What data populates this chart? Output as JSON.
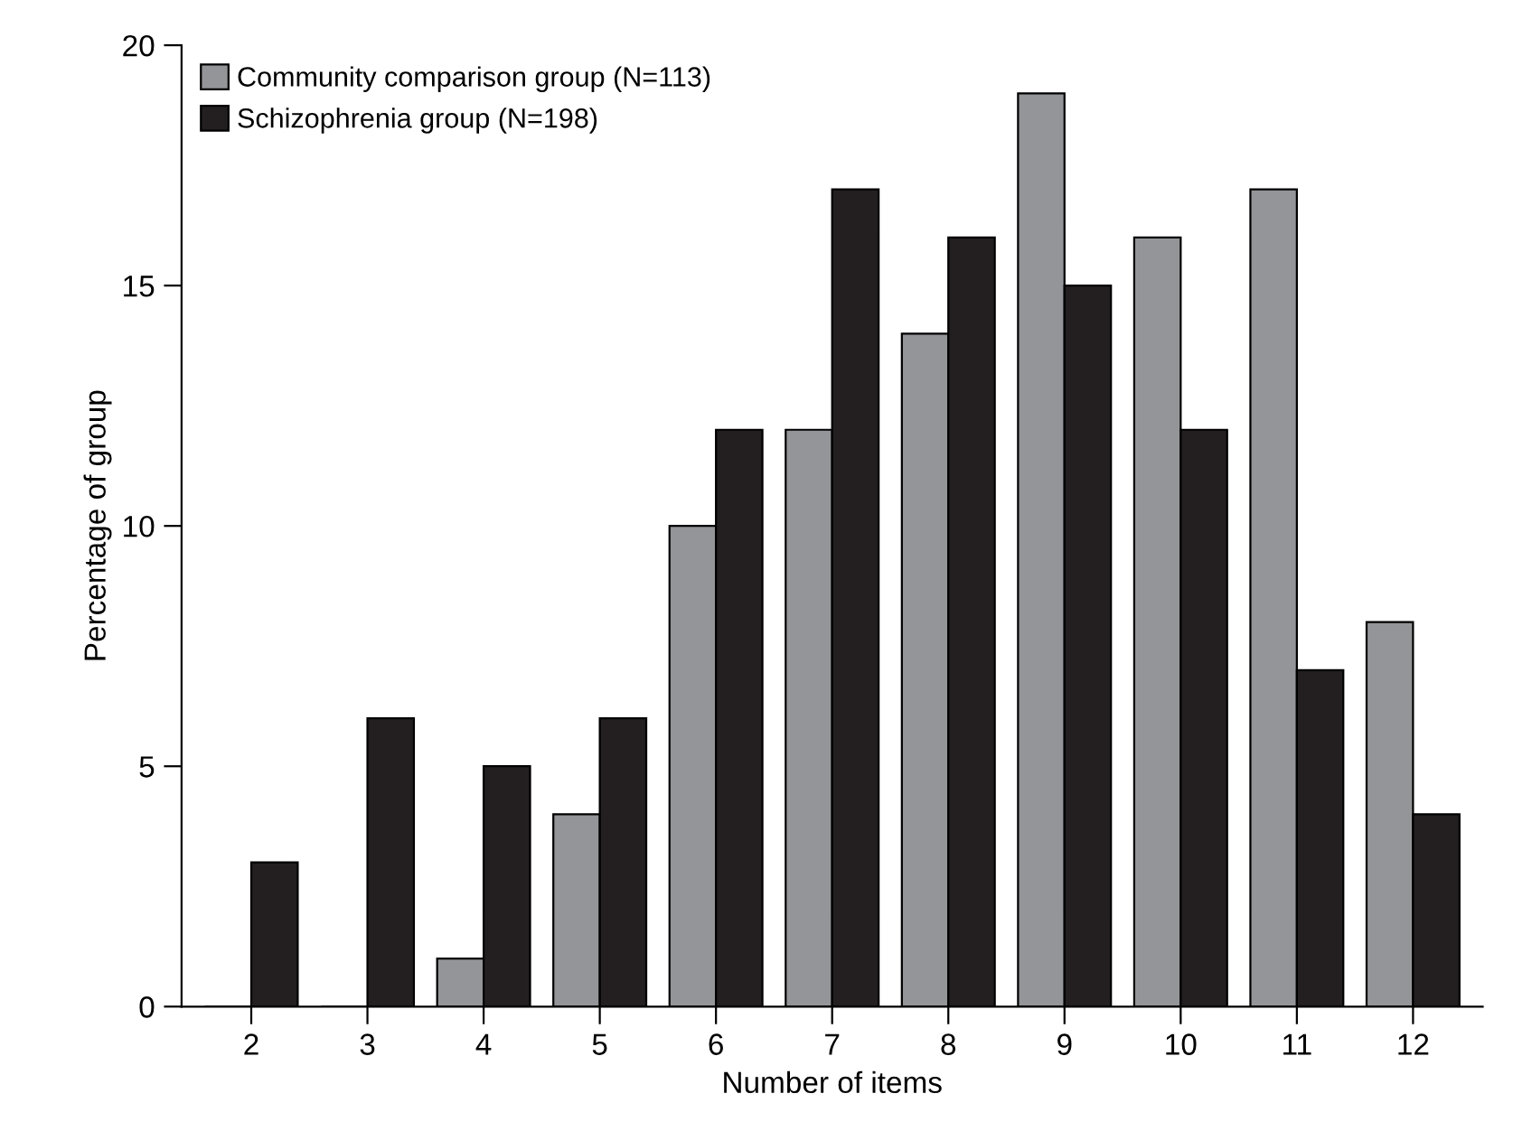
{
  "chart_data": {
    "type": "bar",
    "xlabel": "Number of items",
    "ylabel": "Percentage of group",
    "categories": [
      "2",
      "3",
      "4",
      "5",
      "6",
      "7",
      "8",
      "9",
      "10",
      "11",
      "12"
    ],
    "series": [
      {
        "name": "Community comparison group (N=113)",
        "color": "#939598",
        "values": [
          0,
          0,
          1,
          4,
          10,
          12,
          14,
          19,
          16,
          17,
          8
        ]
      },
      {
        "name": "Schizophrenia group (N=198)",
        "color": "#231f20",
        "values": [
          3,
          6,
          5,
          6,
          12,
          17,
          16,
          15,
          12,
          7,
          4
        ]
      }
    ],
    "ylim": [
      0,
      20
    ],
    "yticks": [
      0,
      5,
      10,
      15,
      20
    ],
    "grid": false,
    "legend": "top left"
  }
}
